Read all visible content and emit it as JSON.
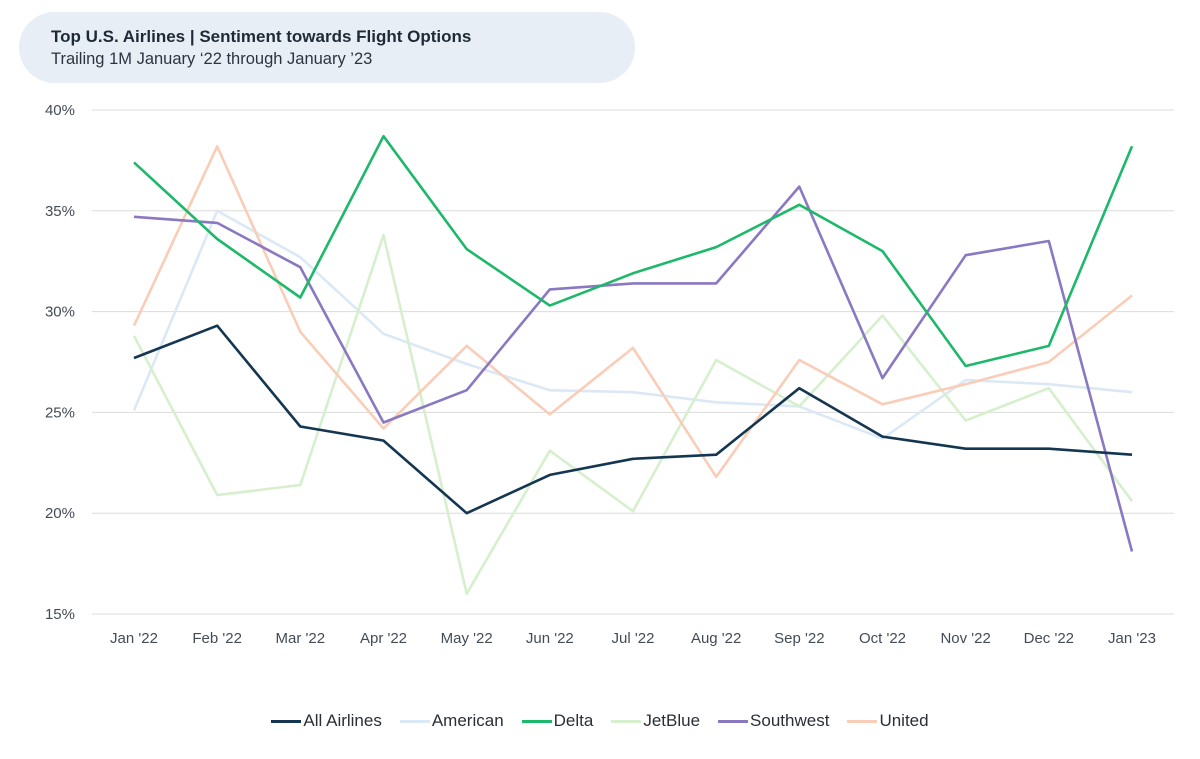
{
  "header": {
    "title": "Top U.S. Airlines | Sentiment towards Flight Options",
    "subtitle": "Trailing 1M January ‘22 through January ’23"
  },
  "chart_data": {
    "type": "line",
    "title": "Top U.S. Airlines | Sentiment towards Flight Options",
    "subtitle": "Trailing 1M January ‘22 through January ’23",
    "xlabel": "",
    "ylabel": "",
    "categories": [
      "Jan '22",
      "Feb '22",
      "Mar '22",
      "Apr '22",
      "May '22",
      "Jun '22",
      "Jul '22",
      "Aug '22",
      "Sep '22",
      "Oct '22",
      "Nov '22",
      "Dec '22",
      "Jan '23"
    ],
    "yticks": [
      "40%",
      "35%",
      "30%",
      "25%",
      "20%",
      "15%"
    ],
    "ylim": [
      15,
      40
    ],
    "grid": true,
    "legend_position": "bottom",
    "series": [
      {
        "name": "American",
        "color": "#dbe8f5",
        "values": [
          25.1,
          35.0,
          32.7,
          28.9,
          27.4,
          26.1,
          26.0,
          25.5,
          25.3,
          23.7,
          26.6,
          26.4,
          26.0
        ]
      },
      {
        "name": "JetBlue",
        "color": "#d6efcc",
        "values": [
          28.8,
          20.9,
          21.4,
          33.8,
          16.0,
          23.1,
          20.1,
          27.6,
          25.3,
          29.8,
          24.6,
          26.2,
          20.6
        ]
      },
      {
        "name": "United",
        "color": "#f9cdb8",
        "values": [
          29.3,
          38.2,
          29.0,
          24.2,
          28.3,
          24.9,
          28.2,
          21.8,
          27.6,
          25.4,
          26.4,
          27.5,
          30.8
        ]
      },
      {
        "name": "Southwest",
        "color": "#8a78c2",
        "values": [
          34.7,
          34.4,
          32.2,
          24.5,
          26.1,
          31.1,
          31.4,
          31.4,
          36.2,
          26.7,
          32.8,
          33.5,
          18.1
        ]
      },
      {
        "name": "Delta",
        "color": "#1db86a",
        "values": [
          37.4,
          33.6,
          30.7,
          38.7,
          33.1,
          30.3,
          31.9,
          33.2,
          35.3,
          33.0,
          27.3,
          28.3,
          38.2
        ]
      },
      {
        "name": "All Airlines",
        "color": "#143651",
        "values": [
          27.7,
          29.3,
          24.3,
          23.6,
          20.0,
          21.9,
          22.7,
          22.9,
          26.2,
          23.8,
          23.2,
          23.2,
          22.9
        ]
      }
    ],
    "legend_order": [
      "All Airlines",
      "American",
      "Delta",
      "JetBlue",
      "Southwest",
      "United"
    ]
  }
}
